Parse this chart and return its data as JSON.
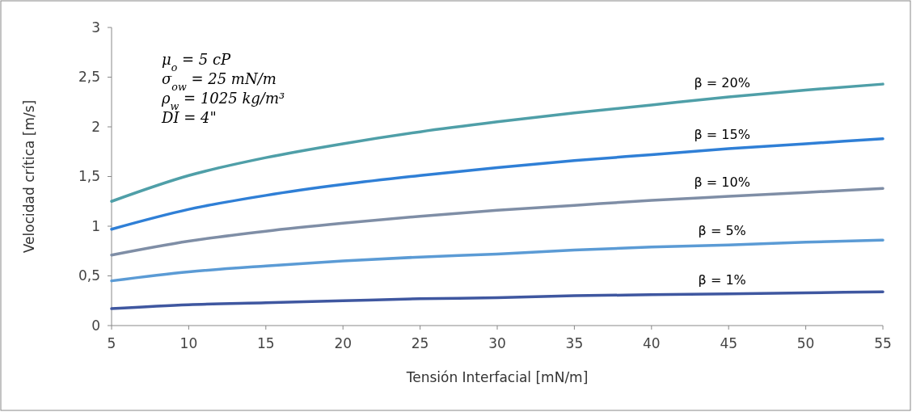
{
  "chart_data": {
    "type": "line",
    "xlabel": "Tensión Interfacial [mN/m]",
    "ylabel": "Velocidad crítica [m/s]",
    "x": [
      5,
      10,
      15,
      20,
      25,
      30,
      35,
      40,
      45,
      50,
      55
    ],
    "xlim": [
      5,
      55
    ],
    "xticks": [
      5,
      10,
      15,
      20,
      25,
      30,
      35,
      40,
      45,
      50,
      55
    ],
    "ylim": [
      0,
      3
    ],
    "yticks": [
      0,
      {
        "value": 0.5,
        "label": "0,5"
      },
      1,
      {
        "value": 1.5,
        "label": "1,5"
      },
      2,
      {
        "value": 2.5,
        "label": "2,5"
      },
      3
    ],
    "grid": false,
    "marker": "none",
    "line_style": "solid",
    "annotations": [
      "μ$_{o}$ = 5 cP",
      "σ$_{ow}$ = 25 mN/m",
      "ρ$_{w}$ = 1025 kg/m³",
      "DI = 4\""
    ],
    "series": [
      {
        "name": "β = 20%",
        "color": "#4f9fa8",
        "values": [
          1.25,
          1.51,
          1.69,
          1.83,
          1.95,
          2.05,
          2.14,
          2.22,
          2.3,
          2.37,
          2.43
        ]
      },
      {
        "name": "β = 15%",
        "color": "#2f7fd6",
        "values": [
          0.97,
          1.17,
          1.31,
          1.42,
          1.51,
          1.59,
          1.66,
          1.72,
          1.78,
          1.83,
          1.88
        ]
      },
      {
        "name": "β = 10%",
        "color": "#7f8ea6",
        "values": [
          0.71,
          0.85,
          0.95,
          1.03,
          1.1,
          1.16,
          1.21,
          1.26,
          1.3,
          1.34,
          1.38
        ]
      },
      {
        "name": "β = 5%",
        "color": "#5b9bd5",
        "values": [
          0.45,
          0.54,
          0.6,
          0.65,
          0.69,
          0.72,
          0.76,
          0.79,
          0.81,
          0.84,
          0.86
        ]
      },
      {
        "name": "β = 1%",
        "color": "#3f57a0",
        "values": [
          0.17,
          0.21,
          0.23,
          0.25,
          0.27,
          0.28,
          0.3,
          0.31,
          0.32,
          0.33,
          0.34
        ]
      }
    ]
  }
}
